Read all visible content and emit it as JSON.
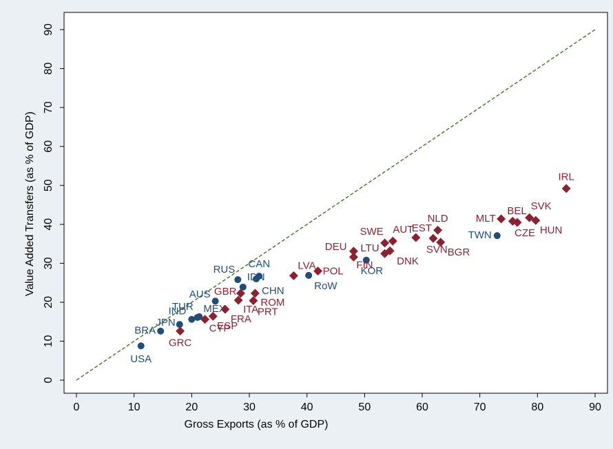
{
  "chart_data": {
    "type": "scatter",
    "xlabel": "Gross Exports (as % of GDP)",
    "ylabel": "Value Added Transfers (as % of GDP)",
    "xlim": [
      0,
      90
    ],
    "ylim": [
      0,
      90
    ],
    "xticks": [
      0,
      10,
      20,
      30,
      40,
      50,
      60,
      70,
      80,
      90
    ],
    "yticks": [
      0,
      10,
      20,
      30,
      40,
      50,
      60,
      70,
      80,
      90
    ],
    "reference_line": {
      "color": "#4a7a2a",
      "style": "dashed"
    },
    "series": [
      {
        "color": "#1f4e79",
        "marker": "circle",
        "labels": [
          "USA",
          "BRA",
          "JPN",
          "IND",
          "TUR",
          "MEX",
          "AUS",
          "RUS",
          "IDN",
          "CHN",
          "CAN",
          "RoW",
          "KOR",
          "TWN"
        ],
        "x": [
          11.2,
          14.6,
          17.9,
          20.0,
          21.0,
          21.3,
          24.1,
          28.0,
          28.9,
          31.2,
          31.7,
          40.3,
          50.3,
          73.0
        ],
        "values": [
          8.8,
          12.6,
          14.3,
          15.6,
          16.1,
          16.3,
          20.3,
          25.8,
          23.9,
          26.0,
          26.7,
          26.9,
          30.8,
          37.1
        ]
      },
      {
        "color": "#8b2232",
        "marker": "diamond",
        "labels": [
          "GRC",
          "CYP",
          "ESP",
          "FRA",
          "ITA",
          "GBR",
          "PRT",
          "ROM",
          "LVA",
          "POL",
          "FIN",
          "DEU",
          "SWE",
          "LTU",
          "DNK",
          "AUT",
          "EST",
          "SVN",
          "NLD",
          "BGR",
          "MLT",
          "BEL",
          "CZE",
          "SVK",
          "HUN",
          "IRL"
        ],
        "x": [
          18.0,
          22.3,
          23.7,
          25.8,
          28.1,
          28.5,
          30.7,
          31.0,
          37.7,
          41.9,
          48.1,
          48.1,
          53.5,
          53.5,
          54.4,
          54.9,
          58.9,
          61.9,
          62.7,
          63.2,
          73.7,
          75.7,
          76.5,
          78.6,
          79.7,
          85.0
        ],
        "values": [
          12.6,
          15.6,
          16.4,
          18.2,
          20.5,
          22.3,
          20.4,
          22.3,
          26.8,
          28.0,
          31.6,
          33.1,
          35.2,
          32.5,
          33.2,
          35.7,
          36.6,
          36.4,
          38.5,
          35.4,
          41.4,
          40.8,
          40.5,
          41.7,
          41.0,
          49.2
        ]
      }
    ]
  }
}
